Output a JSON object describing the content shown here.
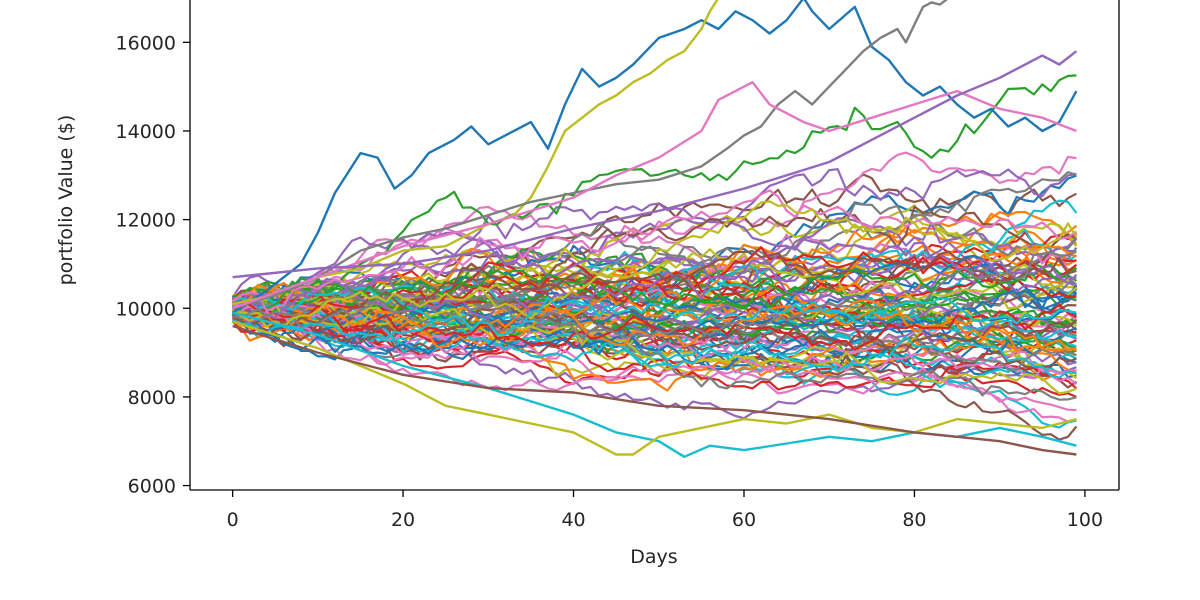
{
  "chart_data": {
    "type": "line",
    "title": "",
    "xlabel": "Days",
    "ylabel": "portfolio Value ($)",
    "xlim": [
      -5,
      104
    ],
    "ylim": [
      5900,
      17000
    ],
    "x_ticks": [
      0,
      20,
      40,
      60,
      80,
      100
    ],
    "y_ticks": [
      6000,
      8000,
      10000,
      12000,
      14000,
      16000
    ],
    "x_tick_labels": [
      "0",
      "20",
      "40",
      "60",
      "80",
      "100"
    ],
    "y_tick_labels": [
      "6000",
      "8000",
      "10000",
      "12000",
      "14000",
      "16000"
    ],
    "grid": false,
    "legend": false,
    "num_simulations": 100,
    "num_days": 100,
    "initial_value": 10000,
    "colors": [
      "#1f77b4",
      "#ff7f0e",
      "#2ca02c",
      "#d62728",
      "#9467bd",
      "#8c564b",
      "#e377c2",
      "#7f7f7f",
      "#bcbd22",
      "#17becf"
    ],
    "highlighted_series": [
      {
        "color": "#1f77b4",
        "x": [
          0,
          4,
          8,
          10,
          12,
          15,
          17,
          19,
          21,
          23,
          26,
          28,
          30,
          32,
          35,
          37,
          39,
          41,
          43,
          45,
          47,
          50,
          53,
          55,
          57,
          59,
          61,
          63,
          65,
          67,
          68,
          70,
          73,
          75,
          77,
          79,
          81,
          83,
          85,
          87,
          89,
          91,
          93,
          95,
          97,
          99
        ],
        "y": [
          9900,
          10400,
          11000,
          11700,
          12600,
          13500,
          13400,
          12700,
          13000,
          13500,
          13800,
          14100,
          13700,
          13900,
          14200,
          13600,
          14600,
          15400,
          15000,
          15200,
          15500,
          16100,
          16300,
          16500,
          16300,
          16700,
          16500,
          16200,
          16500,
          17000,
          16700,
          16300,
          16800,
          15900,
          15600,
          15100,
          14800,
          15000,
          14600,
          14300,
          14500,
          14100,
          14300,
          14000,
          14200,
          14900
        ]
      },
      {
        "color": "#bcbd22",
        "x": [
          0,
          5,
          10,
          15,
          20,
          25,
          30,
          33,
          35,
          37,
          39,
          41,
          43,
          45,
          47,
          49,
          51,
          53,
          55,
          56,
          57
        ],
        "y": [
          10100,
          10300,
          10700,
          10900,
          11300,
          11400,
          11900,
          12100,
          12500,
          13200,
          14000,
          14300,
          14600,
          14800,
          15100,
          15300,
          15600,
          15800,
          16300,
          16700,
          17000
        ]
      },
      {
        "color": "#7f7f7f",
        "x": [
          0,
          5,
          10,
          15,
          20,
          25,
          30,
          35,
          40,
          45,
          50,
          55,
          58,
          60,
          62,
          64,
          66,
          68,
          70,
          72,
          74,
          76,
          78,
          79,
          80,
          81,
          82,
          83,
          84
        ],
        "y": [
          10000,
          10300,
          10700,
          11300,
          11600,
          11800,
          12100,
          12400,
          12600,
          12800,
          12900,
          13200,
          13600,
          13900,
          14100,
          14600,
          14900,
          14600,
          15000,
          15400,
          15800,
          16100,
          16300,
          16000,
          16400,
          16800,
          16900,
          16850,
          17000
        ]
      },
      {
        "color": "#e377c2",
        "x": [
          0,
          10,
          20,
          30,
          40,
          45,
          50,
          55,
          57,
          59,
          61,
          63,
          65,
          67,
          70,
          75,
          80,
          85,
          90,
          95,
          99
        ],
        "y": [
          10000,
          10700,
          11400,
          11900,
          12500,
          13000,
          13400,
          14000,
          14700,
          14900,
          15100,
          14600,
          14400,
          14200,
          14000,
          14300,
          14600,
          14900,
          14500,
          14300,
          14000
        ]
      },
      {
        "color": "#9467bd",
        "x": [
          0,
          10,
          20,
          30,
          40,
          50,
          60,
          70,
          75,
          80,
          85,
          90,
          93,
          95,
          97,
          99
        ],
        "y": [
          10700,
          10900,
          11000,
          11300,
          11800,
          12200,
          12700,
          13300,
          13800,
          14300,
          14800,
          15200,
          15500,
          15700,
          15500,
          15800
        ]
      },
      {
        "color": "#17becf",
        "x": [
          0,
          10,
          20,
          30,
          40,
          45,
          50,
          53,
          56,
          60,
          65,
          70,
          75,
          80,
          85,
          90,
          95,
          99
        ],
        "y": [
          9900,
          9400,
          8700,
          8200,
          7600,
          7200,
          7000,
          6650,
          6900,
          6800,
          6950,
          7100,
          7000,
          7200,
          7100,
          7300,
          7100,
          6900
        ]
      },
      {
        "color": "#bcbd22",
        "x": [
          0,
          10,
          20,
          25,
          30,
          35,
          40,
          43,
          45,
          47,
          50,
          55,
          60,
          65,
          70,
          75,
          80,
          85,
          90,
          95,
          99
        ],
        "y": [
          9700,
          9100,
          8300,
          7800,
          7600,
          7400,
          7200,
          6900,
          6700,
          6700,
          7100,
          7300,
          7500,
          7400,
          7600,
          7300,
          7200,
          7500,
          7400,
          7300,
          7500
        ]
      },
      {
        "color": "#8c564b",
        "x": [
          0,
          10,
          20,
          30,
          40,
          50,
          60,
          70,
          80,
          90,
          95,
          99
        ],
        "y": [
          9600,
          9000,
          8500,
          8200,
          8100,
          7800,
          7700,
          7500,
          7200,
          7000,
          6800,
          6700
        ]
      }
    ]
  }
}
